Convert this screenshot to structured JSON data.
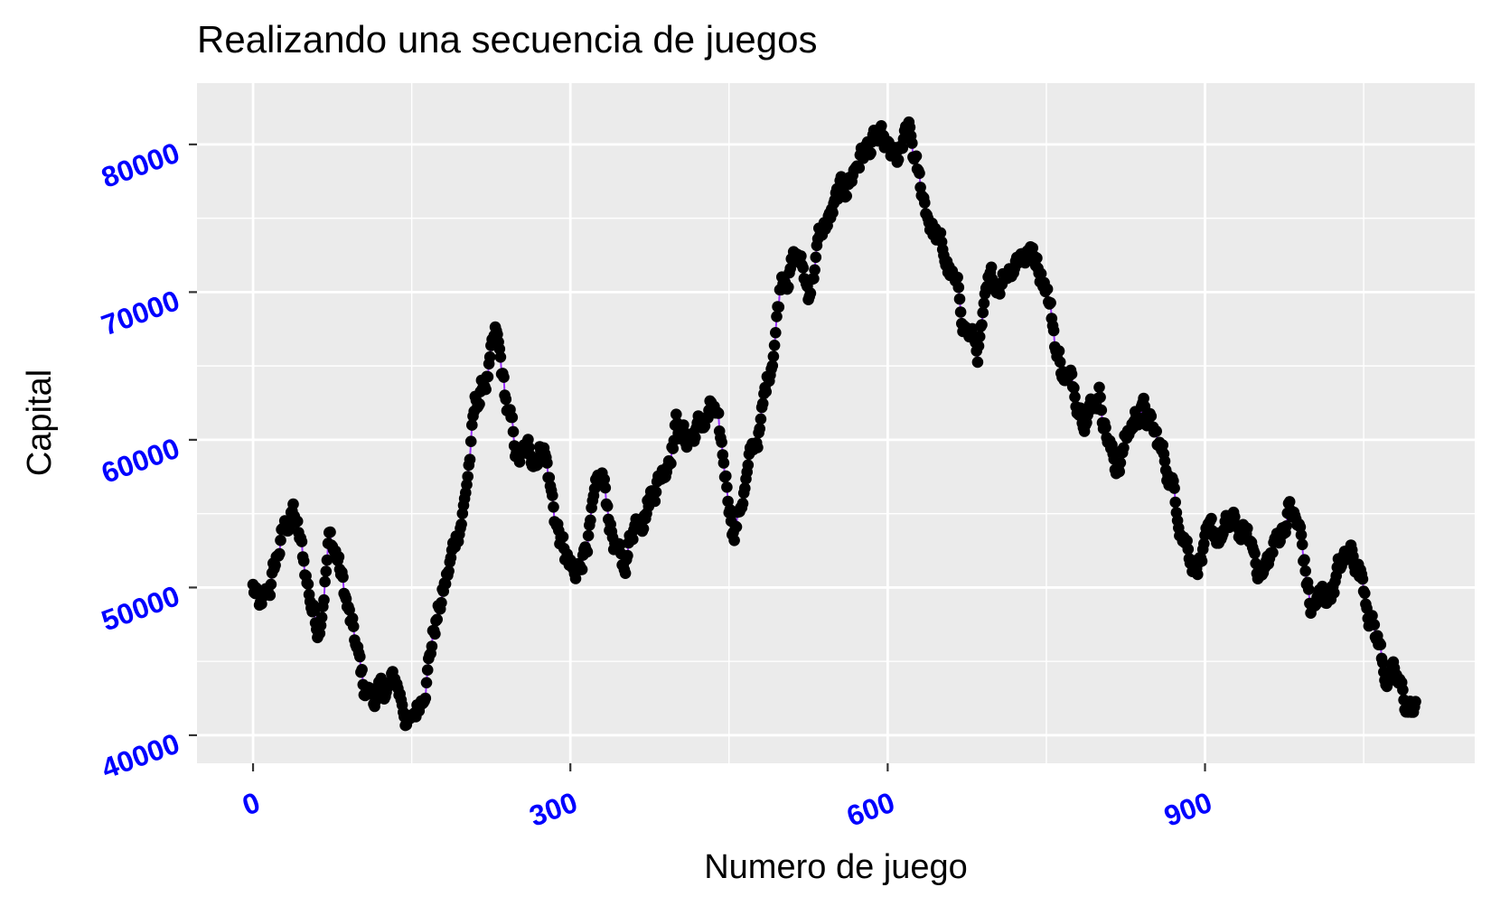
{
  "chart_data": {
    "type": "scatter",
    "title": "Realizando una secuencia de juegos",
    "xlabel": "Numero de juego",
    "ylabel": "Capital",
    "x_ticks": [
      0,
      300,
      600,
      900
    ],
    "y_ticks": [
      40000,
      50000,
      60000,
      70000,
      80000
    ],
    "x_tick_labels": [
      "0",
      "300",
      "600",
      "900"
    ],
    "y_tick_labels": [
      "40000",
      "50000",
      "60000",
      "70000",
      "80000"
    ],
    "xlim": [
      -53,
      1155
    ],
    "ylim": [
      38100,
      84150
    ],
    "n_points": 1100,
    "grid": true,
    "legend": "none",
    "point_color": "#000000",
    "line_color": "#9b30ff",
    "tick_label_color": "#0000ff",
    "panel_background": "#ebebeb",
    "grid_color": "#ffffff",
    "series": [
      {
        "anchors": [
          [
            0,
            50000
          ],
          [
            8,
            48000
          ],
          [
            15,
            49500
          ],
          [
            28,
            53500
          ],
          [
            38,
            55200
          ],
          [
            48,
            51500
          ],
          [
            55,
            49000
          ],
          [
            62,
            47500
          ],
          [
            72,
            53500
          ],
          [
            80,
            52000
          ],
          [
            92,
            47500
          ],
          [
            105,
            43000
          ],
          [
            120,
            42500
          ],
          [
            135,
            43500
          ],
          [
            150,
            40500
          ],
          [
            160,
            43000
          ],
          [
            170,
            47000
          ],
          [
            185,
            51000
          ],
          [
            200,
            56000
          ],
          [
            210,
            62000
          ],
          [
            220,
            64000
          ],
          [
            230,
            66500
          ],
          [
            240,
            62000
          ],
          [
            250,
            58500
          ],
          [
            265,
            59000
          ],
          [
            275,
            60000
          ],
          [
            285,
            55000
          ],
          [
            295,
            52000
          ],
          [
            305,
            50000
          ],
          [
            315,
            53500
          ],
          [
            330,
            57000
          ],
          [
            340,
            53500
          ],
          [
            350,
            51000
          ],
          [
            360,
            54500
          ],
          [
            375,
            56500
          ],
          [
            390,
            58500
          ],
          [
            400,
            61500
          ],
          [
            410,
            60000
          ],
          [
            425,
            61000
          ],
          [
            435,
            62000
          ],
          [
            445,
            58000
          ],
          [
            455,
            54000
          ],
          [
            465,
            57000
          ],
          [
            480,
            61000
          ],
          [
            490,
            65500
          ],
          [
            500,
            71500
          ],
          [
            515,
            72500
          ],
          [
            525,
            70000
          ],
          [
            535,
            73500
          ],
          [
            550,
            75500
          ],
          [
            560,
            77000
          ],
          [
            575,
            79500
          ],
          [
            590,
            80000
          ],
          [
            600,
            79000
          ],
          [
            610,
            78500
          ],
          [
            620,
            80500
          ],
          [
            630,
            77000
          ],
          [
            645,
            74000
          ],
          [
            660,
            71000
          ],
          [
            670,
            68500
          ],
          [
            685,
            66000
          ],
          [
            695,
            69500
          ],
          [
            710,
            71500
          ],
          [
            725,
            73000
          ],
          [
            740,
            72500
          ],
          [
            750,
            71000
          ],
          [
            760,
            66000
          ],
          [
            770,
            64000
          ],
          [
            780,
            63000
          ],
          [
            790,
            62500
          ],
          [
            800,
            63500
          ],
          [
            815,
            58000
          ],
          [
            825,
            60000
          ],
          [
            840,
            62500
          ],
          [
            850,
            60500
          ],
          [
            865,
            58000
          ],
          [
            880,
            54000
          ],
          [
            890,
            52000
          ],
          [
            900,
            52500
          ],
          [
            915,
            53500
          ],
          [
            930,
            54000
          ],
          [
            945,
            52500
          ],
          [
            955,
            51000
          ],
          [
            965,
            52500
          ],
          [
            980,
            55500
          ],
          [
            990,
            53500
          ],
          [
            1000,
            48500
          ],
          [
            1015,
            49500
          ],
          [
            1025,
            51000
          ],
          [
            1040,
            52500
          ],
          [
            1050,
            50500
          ],
          [
            1060,
            47500
          ],
          [
            1070,
            44500
          ],
          [
            1080,
            43500
          ],
          [
            1090,
            42000
          ],
          [
            1099,
            41500
          ]
        ]
      }
    ]
  }
}
